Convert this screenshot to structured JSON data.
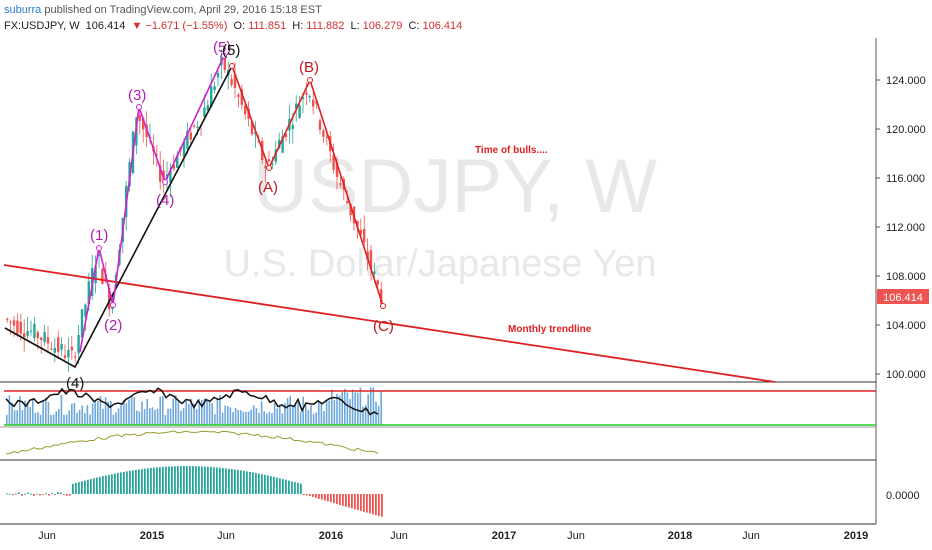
{
  "header": {
    "author": "suburra",
    "published": "published on TradingView.com, April 29, 2016 15:18 EST",
    "symbol": "FX:USDJPY, W",
    "last": "106.414",
    "change": "▼ −1.671 (−1.55%)",
    "open_label": "O:",
    "open": "111.851",
    "high_label": "H:",
    "high": "111.882",
    "low_label": "L:",
    "low": "106.279",
    "close_label": "C:",
    "close": "106.414"
  },
  "watermark": {
    "symbol": "USDJPY, W",
    "name": "U.S. Dollar/Japanese Yen"
  },
  "price_axis": {
    "ticks": [
      "124.000",
      "120.000",
      "116.000",
      "112.000",
      "108.000",
      "104.000",
      "100.000"
    ],
    "current_price": "106.414"
  },
  "oscillator_axis": {
    "zero": "0.0000"
  },
  "time_axis": [
    "Jun",
    "2015",
    "Jun",
    "2016",
    "Jun",
    "2017",
    "Jun",
    "2018",
    "Jun",
    "2019"
  ],
  "annotations": {
    "time_of_bulls": "Time of bulls....",
    "monthly_trendline": "Monthly trendline",
    "wave_1": "(1)",
    "wave_2": "(2)",
    "wave_3": "(3)",
    "wave_4": "(4)",
    "wave_5": "(5)",
    "wave_4_black": "(4)",
    "wave_5_black": "(5)",
    "wave_a": "(A)",
    "wave_b": "(B)",
    "wave_c": "(C)"
  },
  "colors": {
    "up": "#26a69a",
    "down": "#ef5350",
    "trend": "#e02020",
    "impulse": "#d020d0",
    "black_wave": "#111111",
    "corrective": "#e02020",
    "price_tag": "#ef5350"
  }
}
